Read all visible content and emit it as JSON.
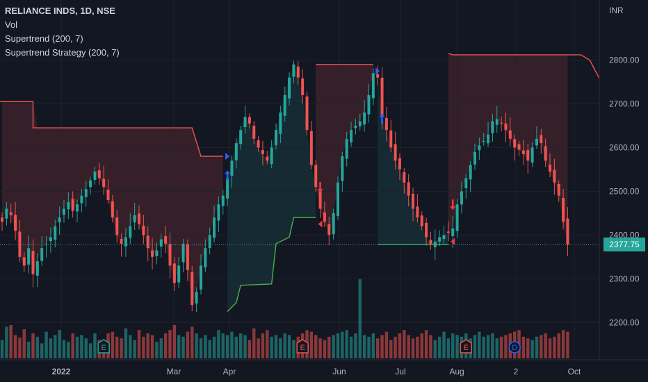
{
  "legend": {
    "symbol": "RELIANCE INDS, 1D, NSE",
    "vol": "Vol",
    "indicator1": "Supertrend (200, 7)",
    "indicator2": "Supertrend Strategy (200, 7)"
  },
  "axis_unit": "INR",
  "last_price": "2377.75",
  "colors": {
    "background": "#131722",
    "up": "#26a69a",
    "down": "#ef5350",
    "buy_arrow": "#2962ff",
    "sell_arrow": "#f23645",
    "last_price": "#26a69a"
  },
  "chart_data": {
    "type": "candlestick",
    "title": "RELIANCE INDS, 1D, NSE",
    "ylabel": "INR",
    "ylim": [
      2120,
      2890
    ],
    "y_ticks": [
      "2200.00",
      "2300.00",
      "2400.00",
      "2500.00",
      "2600.00",
      "2700.00",
      "2800.00"
    ],
    "x_ticks": [
      "2022",
      "Mar",
      "Apr",
      "Jun",
      "Jul",
      "Aug",
      "2",
      "Oct"
    ],
    "last_price": 2377.75,
    "supertrend": {
      "down_segments": [
        [
          [
            -1,
            2705
          ],
          [
            7,
            2705
          ],
          [
            7,
            2645
          ],
          [
            43,
            2645
          ],
          [
            45,
            2580
          ],
          [
            50,
            2580
          ]
        ],
        [
          [
            71,
            2790
          ],
          [
            84,
            2790
          ]
        ],
        [
          [
            101,
            2815
          ],
          [
            102,
            2812
          ],
          [
            131,
            2812
          ],
          [
            133,
            2800
          ],
          [
            136,
            2742
          ],
          [
            139,
            2740
          ]
        ]
      ],
      "up_segments": [
        [
          [
            51,
            2225
          ],
          [
            53,
            2245
          ],
          [
            54,
            2285
          ],
          [
            61,
            2288
          ],
          [
            62,
            2380
          ],
          [
            65,
            2395
          ],
          [
            66,
            2440
          ],
          [
            71,
            2440
          ]
        ],
        [
          [
            85,
            2378
          ],
          [
            101,
            2378
          ]
        ]
      ]
    },
    "signals": [
      {
        "bar": 51,
        "side": "buy",
        "marker": "entry",
        "price": 2580
      },
      {
        "bar": 51,
        "side": "buy",
        "marker": "arrow",
        "price": 2535
      },
      {
        "bar": 72,
        "side": "sell",
        "marker": "arrow",
        "price": 2510
      },
      {
        "bar": 72,
        "side": "sell",
        "marker": "entry",
        "price": 2425
      },
      {
        "bar": 85,
        "side": "buy",
        "marker": "entry",
        "price": 2775
      },
      {
        "bar": 86,
        "side": "buy",
        "marker": "arrow",
        "price": 2665
      },
      {
        "bar": 102,
        "side": "sell",
        "marker": "arrow",
        "price": 2470
      },
      {
        "bar": 102,
        "side": "sell",
        "marker": "entry",
        "price": 2385
      }
    ],
    "events": [
      {
        "bar": 23,
        "label": "E",
        "kind": "earnings",
        "color": "#26a69a"
      },
      {
        "bar": 68,
        "label": "E",
        "kind": "earnings",
        "color": "#ef5350"
      },
      {
        "bar": 105,
        "label": "E",
        "kind": "earnings",
        "color": "#ef5350"
      },
      {
        "bar": 116,
        "label": "D",
        "kind": "dividend",
        "color": "#2962ff"
      }
    ],
    "closes": [
      2430,
      2460,
      2445,
      2410,
      2350,
      2330,
      2370,
      2310,
      2340,
      2370,
      2380,
      2395,
      2420,
      2440,
      2460,
      2475,
      2455,
      2470,
      2490,
      2505,
      2525,
      2545,
      2530,
      2510,
      2480,
      2440,
      2400,
      2380,
      2395,
      2420,
      2445,
      2425,
      2400,
      2370,
      2350,
      2365,
      2390,
      2380,
      2330,
      2290,
      2330,
      2380,
      2320,
      2240,
      2270,
      2330,
      2370,
      2400,
      2440,
      2470,
      2490,
      2530,
      2570,
      2610,
      2640,
      2670,
      2655,
      2620,
      2600,
      2585,
      2570,
      2600,
      2640,
      2680,
      2720,
      2760,
      2790,
      2760,
      2720,
      2640,
      2560,
      2510,
      2460,
      2430,
      2400,
      2450,
      2520,
      2580,
      2620,
      2640,
      2650,
      2660,
      2680,
      2720,
      2770,
      2760,
      2670,
      2640,
      2600,
      2570,
      2550,
      2520,
      2490,
      2460,
      2440,
      2420,
      2395,
      2380,
      2385,
      2395,
      2400,
      2405,
      2415,
      2470,
      2500,
      2530,
      2560,
      2590,
      2605,
      2615,
      2630,
      2660,
      2665,
      2655,
      2640,
      2620,
      2600,
      2595,
      2585,
      2570,
      2600,
      2620,
      2610,
      2570,
      2545,
      2520,
      2490,
      2430,
      2378
    ],
    "volumes": [
      22,
      38,
      40,
      28,
      25,
      35,
      20,
      30,
      26,
      18,
      32,
      24,
      28,
      34,
      22,
      20,
      30,
      26,
      28,
      24,
      18,
      30,
      22,
      20,
      30,
      32,
      26,
      24,
      36,
      28,
      22,
      34,
      26,
      30,
      28,
      20,
      24,
      30,
      34,
      40,
      28,
      26,
      32,
      38,
      30,
      24,
      28,
      22,
      26,
      34,
      30,
      28,
      32,
      26,
      30,
      28,
      22,
      36,
      24,
      30,
      34,
      26,
      28,
      24,
      30,
      28,
      22,
      26,
      30,
      34,
      32,
      28,
      24,
      22,
      26,
      28,
      30,
      32,
      34,
      26,
      30,
      95,
      28,
      26,
      30,
      24,
      28,
      32,
      22,
      26,
      30,
      34,
      28,
      24,
      26,
      30,
      34,
      28,
      22,
      26,
      32,
      24,
      30,
      28,
      26,
      30,
      24,
      28,
      32,
      26,
      28,
      30,
      24,
      26,
      28,
      30,
      32,
      34,
      26,
      24,
      22,
      26,
      28,
      30,
      24,
      26,
      30,
      34,
      32
    ]
  }
}
